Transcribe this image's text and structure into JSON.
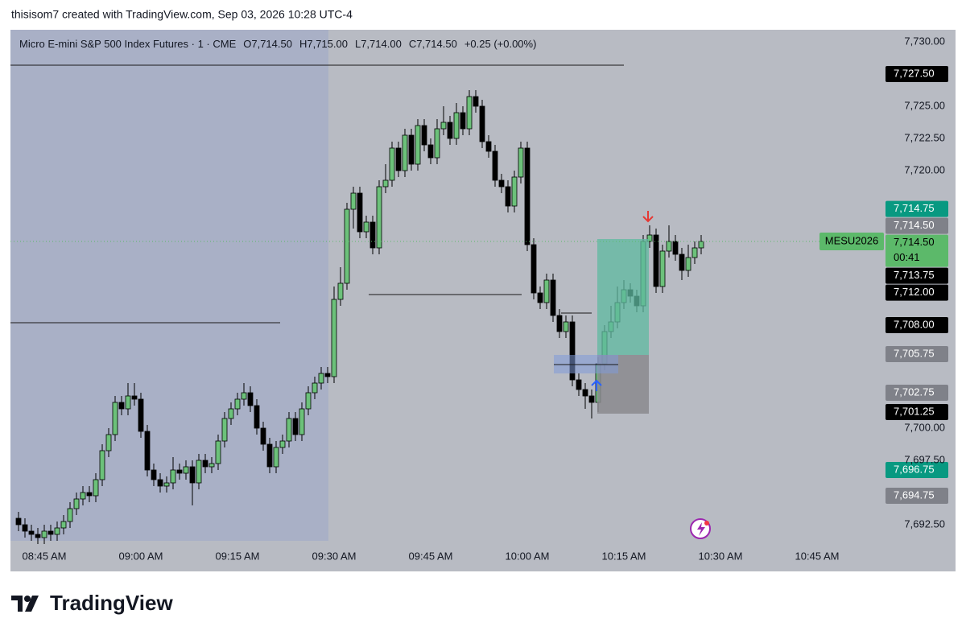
{
  "header": "thisisom7 created with TradingView.com, Sep 03, 2026 10:28 UTC-4",
  "chart_data": {
    "type": "candlestick",
    "symbol": "Micro E-mini S&P 500 Index Futures · 1 · CME",
    "legend_values": [
      "O7,714.50",
      "H7,715.00",
      "L7,714.00",
      "C7,714.50",
      "+0.25 (+0.00%)"
    ],
    "x": [
      "08:41 AM",
      "08:42 AM",
      "08:43 AM",
      "08:44 AM",
      "08:45 AM",
      "08:46 AM",
      "08:47 AM",
      "08:48 AM",
      "08:49 AM",
      "08:50 AM",
      "08:51 AM",
      "08:52 AM",
      "08:53 AM",
      "08:54 AM",
      "08:55 AM",
      "08:56 AM",
      "08:57 AM",
      "08:58 AM",
      "08:59 AM",
      "09:00 AM",
      "09:01 AM",
      "09:02 AM",
      "09:03 AM",
      "09:04 AM",
      "09:05 AM",
      "09:06 AM",
      "09:07 AM",
      "09:08 AM",
      "09:09 AM",
      "09:10 AM",
      "09:11 AM",
      "09:12 AM",
      "09:13 AM",
      "09:14 AM",
      "09:15 AM",
      "09:16 AM",
      "09:17 AM",
      "09:18 AM",
      "09:19 AM",
      "09:20 AM",
      "09:21 AM",
      "09:22 AM",
      "09:23 AM",
      "09:24 AM",
      "09:25 AM",
      "09:26 AM",
      "09:27 AM",
      "09:28 AM",
      "09:29 AM",
      "09:30 AM",
      "09:31 AM",
      "09:32 AM",
      "09:33 AM",
      "09:34 AM",
      "09:35 AM",
      "09:36 AM",
      "09:37 AM",
      "09:38 AM",
      "09:39 AM",
      "09:40 AM",
      "09:41 AM",
      "09:42 AM",
      "09:43 AM",
      "09:44 AM",
      "09:45 AM",
      "09:46 AM",
      "09:47 AM",
      "09:48 AM",
      "09:49 AM",
      "09:50 AM",
      "09:51 AM",
      "09:52 AM",
      "09:53 AM",
      "09:54 AM",
      "09:55 AM",
      "09:56 AM",
      "09:57 AM",
      "09:58 AM",
      "09:59 AM",
      "10:00 AM",
      "10:01 AM",
      "10:02 AM",
      "10:03 AM",
      "10:04 AM",
      "10:05 AM",
      "10:06 AM",
      "10:07 AM",
      "10:08 AM",
      "10:09 AM",
      "10:10 AM",
      "10:11 AM",
      "10:12 AM",
      "10:13 AM",
      "10:14 AM",
      "10:15 AM",
      "10:16 AM",
      "10:17 AM",
      "10:18 AM",
      "10:19 AM",
      "10:20 AM",
      "10:21 AM",
      "10:22 AM",
      "10:23 AM",
      "10:24 AM",
      "10:25 AM",
      "10:26 AM",
      "10:27 AM"
    ],
    "open": [
      7693,
      7692.5,
      7692,
      7691.75,
      7691.5,
      7692,
      7691.75,
      7692.25,
      7692.75,
      7693.75,
      7694.5,
      7695,
      7694.75,
      7696,
      7698.25,
      7699.5,
      7702,
      7701.5,
      7702.5,
      7702.25,
      7699.75,
      7696.75,
      7696,
      7695.5,
      7695.75,
      7696.75,
      7696.5,
      7697,
      7695.75,
      7697.5,
      7697,
      7697.25,
      7699,
      7700.75,
      7701.5,
      7702.25,
      7702.75,
      7701.75,
      7700,
      7698.75,
      7697,
      7698.5,
      7699,
      7700.75,
      7699.5,
      7701.5,
      7702.75,
      7703.5,
      7704.25,
      7704,
      7710,
      7711.25,
      7717,
      7718.25,
      7715.25,
      7716,
      7714,
      7718.75,
      7719.25,
      7721.75,
      7720,
      7722.75,
      7720.5,
      7723.5,
      7722,
      7721,
      7723.25,
      7723.75,
      7722.5,
      7724.5,
      7723.25,
      7725.75,
      7725,
      7722.25,
      7721.5,
      7719.25,
      7718.75,
      7717.25,
      7719.5,
      7721.75,
      7714.25,
      7710.5,
      7709.75,
      7711.5,
      7708.75,
      7707.5,
      7708.25,
      7703.75,
      7703,
      7702.5,
      7702,
      7705,
      7707.5,
      7708.25,
      7709.75,
      7710.75,
      7710.25,
      7709.5,
      7714.5,
      7715,
      7711,
      7713.75,
      7714.5,
      7713.5,
      7712.25,
      7713.25,
      7714
    ],
    "high": [
      7693.5,
      7693,
      7692.5,
      7692.25,
      7692.5,
      7692.5,
      7692.75,
      7693.25,
      7694.25,
      7695,
      7695.5,
      7695.5,
      7696.5,
      7698.75,
      7700,
      7702.5,
      7702.5,
      7703.5,
      7703.5,
      7702.75,
      7700.25,
      7697.25,
      7696.5,
      7696.25,
      7697.75,
      7697.25,
      7697.5,
      7697.5,
      7698,
      7698,
      7697.75,
      7699.5,
      7701.25,
      7702,
      7702.75,
      7703.5,
      7703.25,
      7702.25,
      7700.5,
      7699.25,
      7699,
      7699.5,
      7701.25,
      7701.25,
      7702,
      7703.25,
      7704,
      7704.75,
      7704.75,
      7711,
      7712.5,
      7717.5,
      7718.75,
      7718.75,
      7716.5,
      7716.5,
      7719.25,
      7720.5,
      7722.25,
      7722.25,
      7723.25,
      7723.25,
      7724,
      7724,
      7722.5,
      7724,
      7725,
      7724.25,
      7725.25,
      7725,
      7726.25,
      7726.25,
      7725.5,
      7722.75,
      7722,
      7719.75,
      7719.25,
      7720,
      7722.25,
      7722.25,
      7714.75,
      7711,
      7712,
      7712,
      7709.25,
      7708.75,
      7708.75,
      7704.25,
      7703.5,
      7703,
      7705.5,
      7708,
      7709.5,
      7711,
      7711.5,
      7711.25,
      7710.75,
      7715,
      7715.75,
      7715.5,
      7714.25,
      7715.75,
      7715,
      7714,
      7714.25,
      7714.5,
      7715
    ],
    "low": [
      7692,
      7691.5,
      7691.25,
      7691,
      7691,
      7691.25,
      7691.25,
      7691.75,
      7692.25,
      7693.25,
      7694,
      7694.25,
      7694.25,
      7695.5,
      7697.75,
      7699,
      7701,
      7701,
      7701.75,
      7699.25,
      7696.25,
      7695.5,
      7695,
      7695,
      7695.25,
      7696,
      7696,
      7694,
      7695.25,
      7696.5,
      7696.5,
      7696.75,
      7698.5,
      7700.25,
      7701,
      7701.75,
      7701.25,
      7699.5,
      7698.25,
      7696.5,
      7696.5,
      7698,
      7698.5,
      7699,
      7699,
      7701,
      7702.25,
      7703,
      7703.5,
      7703.5,
      7709.5,
      7710.75,
      7715.5,
      7714.75,
      7714.75,
      7713.5,
      7713.5,
      7718.25,
      7718.75,
      7719.5,
      7719.5,
      7720,
      7720,
      7721.5,
      7720.5,
      7720.5,
      7722.75,
      7722,
      7722,
      7722.75,
      7722.75,
      7724.5,
      7721.75,
      7721,
      7718.75,
      7718.25,
      7716.75,
      7716.75,
      7719,
      7713.75,
      7710,
      7709.25,
      7709.25,
      7708.25,
      7707,
      7707,
      7703.25,
      7702.5,
      7701.5,
      7700.75,
      7701.25,
      7704.5,
      7707,
      7707.75,
      7709.25,
      7709.75,
      7709,
      7709,
      7714,
      7710.5,
      7710.5,
      7713.25,
      7713,
      7711.5,
      7711.75,
      7712.75,
      7713.5
    ],
    "close": [
      7692.5,
      7692,
      7691.75,
      7691.5,
      7692,
      7691.75,
      7692.25,
      7692.75,
      7693.75,
      7694.5,
      7695,
      7694.75,
      7696,
      7698.25,
      7699.5,
      7702,
      7701.5,
      7702.5,
      7702.25,
      7699.75,
      7696.75,
      7696,
      7695.5,
      7695.75,
      7696.75,
      7696.5,
      7697,
      7695.75,
      7697.5,
      7697,
      7697.25,
      7699,
      7700.75,
      7701.5,
      7702.25,
      7702.75,
      7701.75,
      7700,
      7698.75,
      7697,
      7698.5,
      7699,
      7700.75,
      7699.5,
      7701.5,
      7702.75,
      7703.5,
      7704.25,
      7704,
      7710,
      7711.25,
      7717,
      7718.25,
      7715.25,
      7716,
      7714,
      7718.75,
      7719.25,
      7721.75,
      7720,
      7722.75,
      7720.5,
      7723.5,
      7722,
      7721,
      7723.25,
      7723.75,
      7722.5,
      7724.5,
      7723.25,
      7725.75,
      7725,
      7722.25,
      7721.5,
      7719.25,
      7718.75,
      7717.25,
      7719.5,
      7721.75,
      7714.25,
      7710.5,
      7709.75,
      7711.5,
      7708.75,
      7707.5,
      7708.25,
      7703.75,
      7703,
      7702.5,
      7702,
      7705,
      7707.5,
      7708.25,
      7709.75,
      7710.75,
      7710.25,
      7709.5,
      7714.5,
      7715,
      7711,
      7713.75,
      7714.5,
      7713.5,
      7712.25,
      7713.25,
      7714,
      7714.5
    ],
    "up_color": "#6cc17a",
    "down_color": "#000000",
    "xlim": [
      "08:40 AM",
      "10:56 AM"
    ],
    "xticks": [
      "08:45 AM",
      "09:00 AM",
      "09:15 AM",
      "09:30 AM",
      "09:45 AM",
      "10:00 AM",
      "10:15 AM",
      "10:30 AM",
      "10:45 AM"
    ],
    "ylim": [
      7691,
      7731
    ],
    "yticks": [
      {
        "value": 7730,
        "label": "7,730.00"
      },
      {
        "value": 7725,
        "label": "7,725.00"
      },
      {
        "value": 7722.5,
        "label": "7,722.50"
      },
      {
        "value": 7720,
        "label": "7,720.00"
      },
      {
        "value": 7700,
        "label": "7,700.00"
      },
      {
        "value": 7697.5,
        "label": "7,697.50"
      },
      {
        "value": 7692.5,
        "label": "7,692.50"
      }
    ],
    "price_tags": [
      {
        "value": 7727.5,
        "label": "7,727.50",
        "color": "#000000"
      },
      {
        "value": 7714.75,
        "label": "7,714.75",
        "color": "#089981"
      },
      {
        "value": 7714.5,
        "label": "7,714.50",
        "color": "#7f8189"
      },
      {
        "value": 7713.75,
        "label": "7,713.75",
        "color": "#000000"
      },
      {
        "value": 7712,
        "label": "7,712.00",
        "color": "#000000"
      },
      {
        "value": 7708,
        "label": "7,708.00",
        "color": "#000000"
      },
      {
        "value": 7705.75,
        "label": "7,705.75",
        "color": "#7f8189"
      },
      {
        "value": 7702.75,
        "label": "7,702.75",
        "color": "#7f8189"
      },
      {
        "value": 7701.25,
        "label": "7,701.25",
        "color": "#000000"
      },
      {
        "value": 7696.75,
        "label": "7,696.75",
        "color": "#089981"
      },
      {
        "value": 7694.75,
        "label": "7,694.75",
        "color": "#7f8189"
      }
    ],
    "last_price": {
      "symbol": "MESU2026",
      "value": 7714.5,
      "label": "7,714.50",
      "countdown": "00:41",
      "color": "#5cb96a"
    }
  },
  "footer": "TradingView"
}
